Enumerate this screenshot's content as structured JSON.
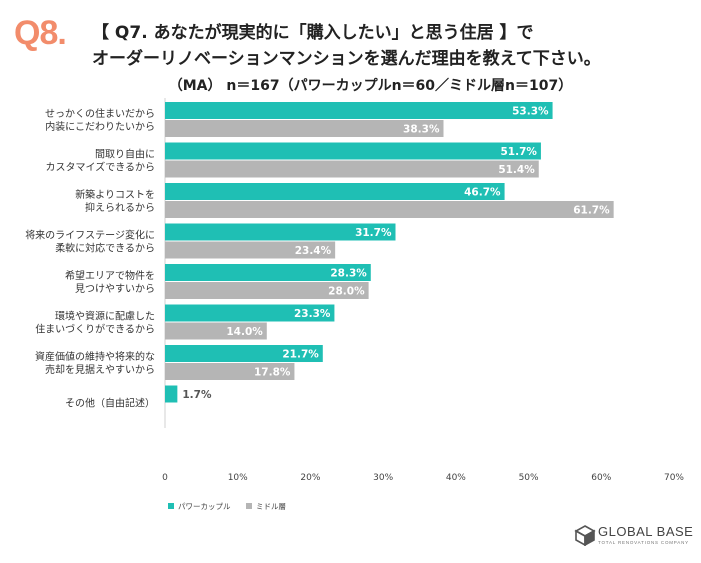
{
  "question_number": "Q8.",
  "title_line1": "【 Q7. あなたが現実的に「購入したい」と思う住居 】で",
  "title_line2": "オーダーリノベーションマンションを選んだ理由を教えて下さい。",
  "sample_note": "（MA） n＝167（パワーカップルn＝60／ミドル層n＝107）",
  "brand": {
    "name": "GLOBAL BASE",
    "tagline": "TOTAL RENOVATIONS COMPANY"
  },
  "colors": {
    "power_couple": "#1fbfb4",
    "middle": "#b5b5b5",
    "question_number": "#f28c6b"
  },
  "chart_data": {
    "type": "bar",
    "orientation": "horizontal",
    "categories": [
      [
        "せっかくの住まいだから",
        "内装にこだわりたいから"
      ],
      [
        "間取り自由に",
        "カスタマイズできるから"
      ],
      [
        "新築よりコストを",
        "抑えられるから"
      ],
      [
        "将来のライフステージ変化に",
        "柔軟に対応できるから"
      ],
      [
        "希望エリアで物件を",
        "見つけやすいから"
      ],
      [
        "環境や資源に配慮した",
        "住まいづくりができるから"
      ],
      [
        "資産価値の維持や将来的な",
        "売却を見据えやすいから"
      ],
      [
        "その他（自由記述）"
      ]
    ],
    "series": [
      {
        "name": "パワーカップル",
        "values": [
          53.3,
          51.7,
          46.7,
          31.7,
          28.3,
          23.3,
          21.7,
          1.7
        ],
        "labels": [
          "53.3%",
          "51.7%",
          "46.7%",
          "31.7%",
          "28.3%",
          "23.3%",
          "21.7%",
          "1.7%"
        ]
      },
      {
        "name": "ミドル層",
        "values": [
          38.3,
          51.4,
          61.7,
          23.4,
          28.0,
          14.0,
          17.8,
          null
        ],
        "labels": [
          "38.3%",
          "51.4%",
          "61.7%",
          "23.4%",
          "28.0%",
          "14.0%",
          "17.8%",
          ""
        ]
      }
    ],
    "xlim": [
      0,
      70
    ],
    "ticks": [
      0,
      10,
      20,
      30,
      40,
      50,
      60,
      70
    ],
    "tick_labels": [
      "0",
      "10%",
      "20%",
      "30%",
      "40%",
      "50%",
      "60%",
      "70%"
    ],
    "grid": false,
    "legend_position": "bottom-left"
  }
}
